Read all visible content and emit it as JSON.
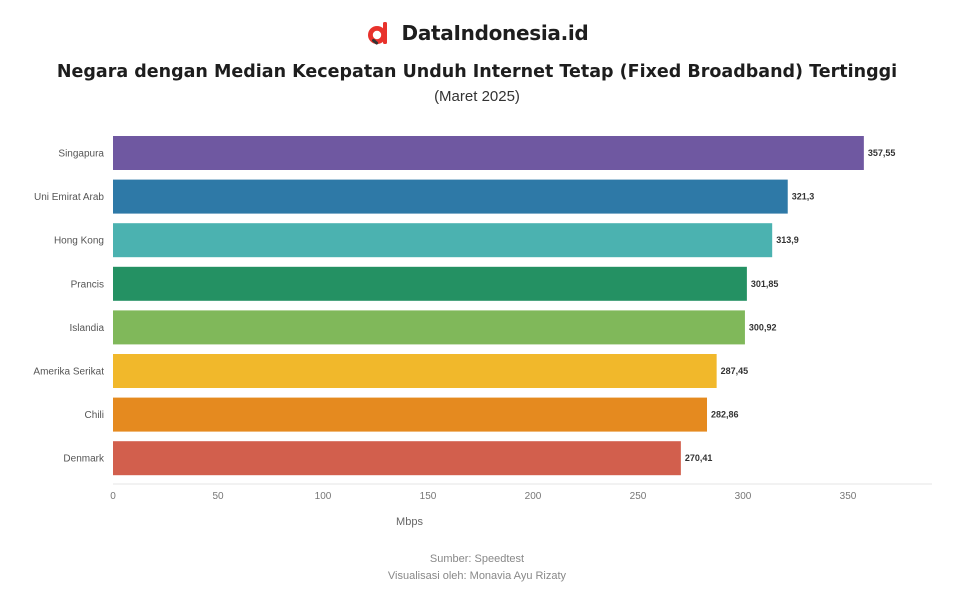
{
  "brand": {
    "name": "DataIndonesia.id",
    "logo_icon": "data-indonesia-logo-icon",
    "accent": "#e8322c"
  },
  "chart_data": {
    "type": "bar",
    "orientation": "horizontal",
    "title": "Negara dengan Median Kecepatan Unduh Internet Tetap (Fixed Broadband) Tertinggi",
    "subtitle": "(Maret 2025)",
    "categories": [
      "Singapura",
      "Uni Emirat Arab",
      "Hong Kong",
      "Prancis",
      "Islandia",
      "Amerika Serikat",
      "Chili",
      "Denmark"
    ],
    "values": [
      357.55,
      321.3,
      313.9,
      301.85,
      300.92,
      287.45,
      282.86,
      270.41
    ],
    "value_labels": [
      "357,55",
      "321,3",
      "313,9",
      "301,85",
      "300,92",
      "287,45",
      "282,86",
      "270,41"
    ],
    "colors": [
      "#6f58a1",
      "#2e79a7",
      "#4bb2b0",
      "#249163",
      "#80b85a",
      "#f1b82b",
      "#e58a1f",
      "#d25f4d"
    ],
    "xlabel": "Mbps",
    "ylabel": "",
    "xlim": [
      0,
      390
    ],
    "xticks": [
      0,
      50,
      100,
      150,
      200,
      250,
      300,
      350
    ],
    "grid": false,
    "legend": "none"
  },
  "footer": {
    "source": "Sumber: Speedtest",
    "visualization": "Visualisasi oleh: Monavia Ayu Rizaty"
  }
}
